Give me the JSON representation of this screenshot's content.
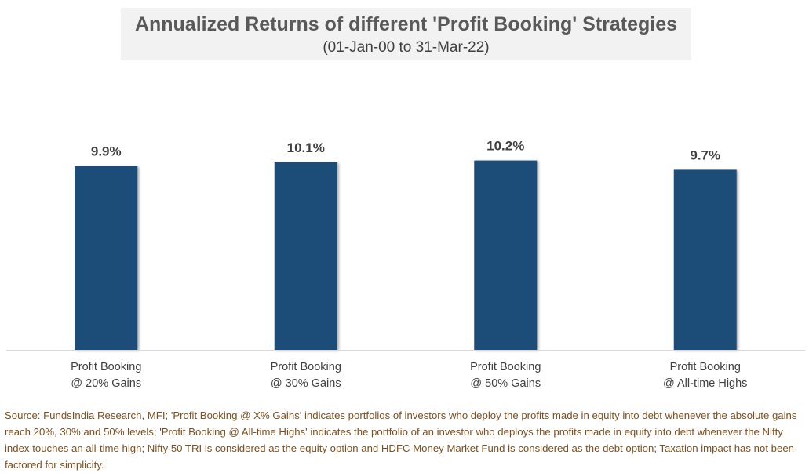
{
  "chart_data": {
    "type": "bar",
    "title": "Annualized Returns of different 'Profit Booking' Strategies",
    "subtitle": "(01-Jan-00 to 31-Mar-22)",
    "categories": [
      [
        "Profit Booking",
        "@ 20% Gains"
      ],
      [
        "Profit Booking",
        "@ 30% Gains"
      ],
      [
        "Profit Booking",
        "@ 50% Gains"
      ],
      [
        "Profit Booking",
        "@ All-time Highs"
      ]
    ],
    "values": [
      9.9,
      10.1,
      10.2,
      9.7
    ],
    "data_labels": [
      "9.9%",
      "10.1%",
      "10.2%",
      "9.7%"
    ],
    "xlabel": "",
    "ylabel": "",
    "ylim": [
      0,
      12
    ],
    "grid": false,
    "legend": "none",
    "bar_color": "#1f4e79"
  },
  "source": "Source: FundsIndia Research, MFI; 'Profit Booking @ X% Gains' indicates portfolios of investors who deploy the profits made in equity into debt whenever the absolute gains reach 20%, 30% and 50% levels; 'Profit Booking @ All-time Highs' indicates the portfolio of an investor who deploys the profits made in equity into debt whenever the Nifty index touches an all-time high; Nifty 50 TRI is considered as the equity option and HDFC Money Market Fund is considered as the debt option; Taxation impact has not been factored for simplicity."
}
